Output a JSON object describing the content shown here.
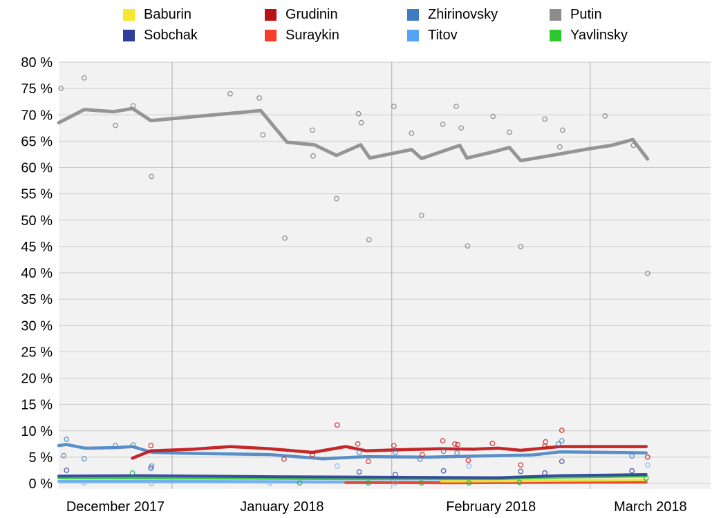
{
  "page": {
    "background": "#ffffff"
  },
  "style": {
    "plot_bg": "#f2f2f2",
    "grid_color": "#cbcbcb",
    "month_line_color": "#ababab",
    "text_color": "#000000"
  },
  "legend": {
    "columns": [
      {
        "items": [
          {
            "name": "Baburin",
            "color": "#f7e72e"
          },
          {
            "name": "Sobchak",
            "color": "#2d3f9b"
          }
        ]
      },
      {
        "items": [
          {
            "name": "Grudinin",
            "color": "#b91114"
          },
          {
            "name": "Suraykin",
            "color": "#f53d28"
          }
        ]
      },
      {
        "items": [
          {
            "name": "Zhirinovsky",
            "color": "#3d7cc0"
          },
          {
            "name": "Titov",
            "color": "#55a3f5"
          }
        ]
      },
      {
        "items": [
          {
            "name": "Putin",
            "color": "#8c8c8c"
          },
          {
            "name": "Yavlinsky",
            "color": "#2ec72e"
          }
        ]
      }
    ]
  },
  "chart_data": {
    "type": "line",
    "grid": true,
    "legend_position": "top",
    "x_axis": {
      "unit": "date",
      "start": "2017-12-16",
      "end": "2018-03-18",
      "total_days": 92,
      "month_gridline_days": [
        16,
        47,
        75
      ],
      "ticks": [
        {
          "label": "December 2017",
          "day": 8
        },
        {
          "label": "January 2018",
          "day": 31.5
        },
        {
          "label": "February 2018",
          "day": 61
        },
        {
          "label": "March 2018",
          "day": 83.5
        }
      ]
    },
    "y_axis": {
      "min": 0,
      "max": 80,
      "step": 5,
      "unit": "%",
      "labels": [
        "0 %",
        "5 %",
        "10 %",
        "15 %",
        "20 %",
        "25 %",
        "30 %",
        "35 %",
        "40 %",
        "45 %",
        "50 %",
        "55 %",
        "60 %",
        "65 %",
        "70 %",
        "75 %",
        "80 %"
      ]
    },
    "series": [
      {
        "name": "Putin",
        "color": "#8d8d8d",
        "point_color": "#7f7f7f",
        "line_width": 5,
        "trend": [
          [
            0,
            68.5
          ],
          [
            3.6,
            71.0
          ],
          [
            7.8,
            70.6
          ],
          [
            10.4,
            71.2
          ],
          [
            13,
            68.9
          ],
          [
            28.5,
            70.8
          ],
          [
            32.2,
            64.8
          ],
          [
            36.1,
            64.3
          ],
          [
            39.2,
            62.3
          ],
          [
            42.6,
            64.3
          ],
          [
            43.9,
            61.8
          ],
          [
            49.8,
            63.4
          ],
          [
            51.2,
            61.7
          ],
          [
            56.6,
            64.2
          ],
          [
            57.6,
            61.8
          ],
          [
            61.7,
            63.1
          ],
          [
            63.6,
            63.8
          ],
          [
            65.2,
            61.3
          ],
          [
            70,
            62.4
          ],
          [
            74.6,
            63.5
          ],
          [
            78,
            64.2
          ],
          [
            81,
            65.3
          ],
          [
            83.1,
            61.6
          ]
        ],
        "scatter": [
          [
            0.3,
            75
          ],
          [
            3.6,
            77
          ],
          [
            8,
            68
          ],
          [
            10.5,
            71.7
          ],
          [
            13.1,
            58.3
          ],
          [
            24.2,
            74
          ],
          [
            28.3,
            73.2
          ],
          [
            28.8,
            66.2
          ],
          [
            31.9,
            46.6
          ],
          [
            35.8,
            67.1
          ],
          [
            35.9,
            62.2
          ],
          [
            39.2,
            54.1
          ],
          [
            42.3,
            70.2
          ],
          [
            42.7,
            68.5
          ],
          [
            43.8,
            46.3
          ],
          [
            47.3,
            71.6
          ],
          [
            49.8,
            66.5
          ],
          [
            51.2,
            50.9
          ],
          [
            54.2,
            68.2
          ],
          [
            56.1,
            71.6
          ],
          [
            56.8,
            67.5
          ],
          [
            57.7,
            45.1
          ],
          [
            61.3,
            69.7
          ],
          [
            63.6,
            66.7
          ],
          [
            65.2,
            45
          ],
          [
            68.6,
            69.2
          ],
          [
            70.7,
            63.9
          ],
          [
            71.1,
            67.1
          ],
          [
            77.1,
            69.8
          ],
          [
            81.1,
            64.2
          ],
          [
            83.1,
            39.9
          ]
        ]
      },
      {
        "name": "Titov",
        "color": "#66abf0",
        "point_color": "#7ab6f5",
        "line_width": 4,
        "trend": [
          [
            0,
            0.4
          ],
          [
            21,
            0.4
          ],
          [
            40.5,
            0.3
          ],
          [
            62,
            0.3
          ],
          [
            74.6,
            0.5
          ],
          [
            82.9,
            0.3
          ]
        ],
        "scatter": [
          [
            3.6,
            0.1
          ],
          [
            13.1,
            0.0
          ],
          [
            29.8,
            0.1
          ],
          [
            39.3,
            3.3
          ],
          [
            47.5,
            0.1
          ],
          [
            57.9,
            3.3
          ],
          [
            83.1,
            3.5
          ]
        ]
      },
      {
        "name": "Suraykin",
        "color": "#f24024",
        "point_color": "#f24024",
        "line_width": 4,
        "trend": [
          [
            40.5,
            0.15
          ],
          [
            55.1,
            0.1
          ],
          [
            70.7,
            0.2
          ],
          [
            82.9,
            0.25
          ]
        ],
        "scatter": []
      },
      {
        "name": "Baburin",
        "color": "#f2e637",
        "point_color": "#e8d820",
        "line_width": 4,
        "trend": [
          [
            54,
            0.45
          ],
          [
            64.9,
            0.5
          ],
          [
            74.6,
            0.6
          ],
          [
            82.9,
            0.7
          ]
        ],
        "scatter": []
      },
      {
        "name": "Yavlinsky",
        "color": "#33c433",
        "point_color": "#22aa44",
        "line_width": 4,
        "trend": [
          [
            0,
            1.05
          ],
          [
            21,
            1.0
          ],
          [
            40.5,
            0.9
          ],
          [
            62,
            0.9
          ],
          [
            70.7,
            1.2
          ],
          [
            82.9,
            1.4
          ]
        ],
        "scatter": [
          [
            10.4,
            2.0
          ],
          [
            34,
            0.1
          ],
          [
            43.7,
            0.1
          ],
          [
            51.2,
            0.1
          ],
          [
            57.9,
            0.1
          ],
          [
            65,
            0.2
          ],
          [
            82.9,
            1.0
          ]
        ]
      },
      {
        "name": "Sobchak",
        "color": "#2d3f9b",
        "point_color": "#2d3f9b",
        "line_width": 4,
        "trend": [
          [
            0,
            1.4
          ],
          [
            11.2,
            1.5
          ],
          [
            29.8,
            1.3
          ],
          [
            46.3,
            1.2
          ],
          [
            62,
            1.1
          ],
          [
            70.7,
            1.5
          ],
          [
            82.9,
            1.7
          ]
        ],
        "scatter": [
          [
            1.1,
            2.5
          ],
          [
            13,
            2.9
          ],
          [
            42.4,
            2.2
          ],
          [
            47.5,
            1.7
          ],
          [
            54.3,
            2.4
          ],
          [
            65.2,
            2.3
          ],
          [
            68.6,
            2.0
          ],
          [
            71,
            4.2
          ],
          [
            80.9,
            2.4
          ]
        ]
      },
      {
        "name": "Zhirinovsky",
        "color": "#4d86c4",
        "point_color": "#4080c0",
        "line_width": 4.5,
        "trend": [
          [
            0,
            7.2
          ],
          [
            1.1,
            7.4
          ],
          [
            3.7,
            6.7
          ],
          [
            8,
            6.8
          ],
          [
            10.4,
            7.0
          ],
          [
            13.2,
            5.9
          ],
          [
            19,
            5.7
          ],
          [
            29.8,
            5.5
          ],
          [
            37.3,
            4.7
          ],
          [
            43.4,
            5.1
          ],
          [
            52.2,
            5.0
          ],
          [
            62,
            5.3
          ],
          [
            66.8,
            5.4
          ],
          [
            70.7,
            6.0
          ],
          [
            77.6,
            5.9
          ],
          [
            82.9,
            5.8
          ]
        ],
        "scatter": [
          [
            0.7,
            5.3
          ],
          [
            1.1,
            8.4
          ],
          [
            3.6,
            4.7
          ],
          [
            8,
            7.2
          ],
          [
            10.5,
            7.3
          ],
          [
            13.1,
            3.3
          ],
          [
            42.4,
            5.9
          ],
          [
            47.5,
            5.9
          ],
          [
            51,
            4.6
          ],
          [
            54.3,
            6.1
          ],
          [
            56.2,
            5.8
          ],
          [
            70.5,
            7.5
          ],
          [
            71,
            8.1
          ],
          [
            80.9,
            5.2
          ]
        ]
      },
      {
        "name": "Grudinin",
        "color": "#c11618",
        "point_color": "#cc1a1a",
        "line_width": 4.5,
        "trend": [
          [
            10.4,
            4.8
          ],
          [
            13,
            6.2
          ],
          [
            19,
            6.5
          ],
          [
            24.2,
            7.0
          ],
          [
            29.8,
            6.6
          ],
          [
            35.8,
            5.9
          ],
          [
            40.5,
            7.0
          ],
          [
            43.4,
            6.2
          ],
          [
            47.8,
            6.4
          ],
          [
            54.1,
            6.6
          ],
          [
            58.5,
            6.5
          ],
          [
            62,
            6.7
          ],
          [
            65.2,
            6.3
          ],
          [
            70.7,
            7.0
          ],
          [
            77.6,
            7.0
          ],
          [
            82.9,
            7.0
          ]
        ],
        "scatter": [
          [
            13,
            7.2
          ],
          [
            31.8,
            4.6
          ],
          [
            35.8,
            5.5
          ],
          [
            39.3,
            11.1
          ],
          [
            42.2,
            7.5
          ],
          [
            43.7,
            4.2
          ],
          [
            47.3,
            7.2
          ],
          [
            51.3,
            5.5
          ],
          [
            54.2,
            8.1
          ],
          [
            55.9,
            7.5
          ],
          [
            56.3,
            7.4
          ],
          [
            57.8,
            4.4
          ],
          [
            61.2,
            7.6
          ],
          [
            65.2,
            3.5
          ],
          [
            68.6,
            7.1
          ],
          [
            68.7,
            7.9
          ],
          [
            71,
            10.1
          ],
          [
            83.1,
            5.0
          ]
        ]
      }
    ]
  }
}
